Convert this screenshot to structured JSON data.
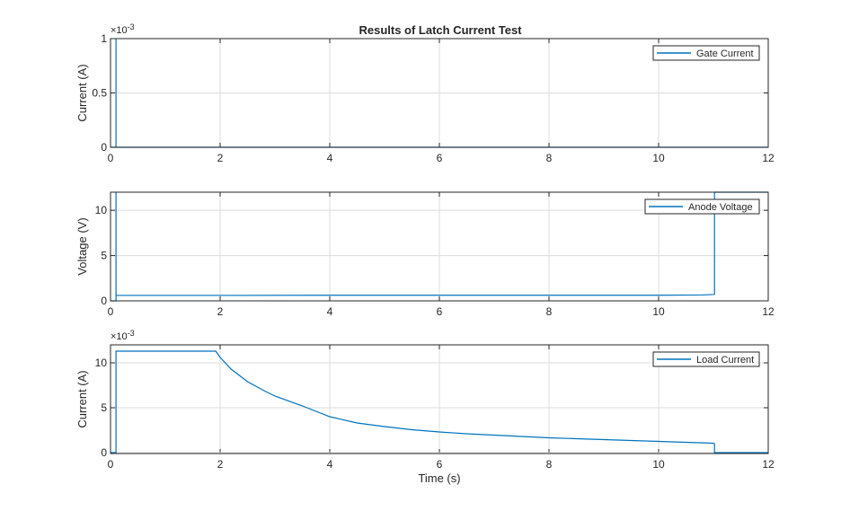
{
  "figure_title": "Results of Latch Current Test",
  "colors": {
    "line": "#0072BD",
    "grid": "#dcdcdc",
    "axis": "#262626",
    "legend_border": "#262626"
  },
  "chart_data": [
    {
      "type": "line",
      "title": "Results of Latch Current Test",
      "xlabel": "",
      "ylabel": "Current (A)",
      "exponent_label": "×10",
      "exponent_power": "-3",
      "xlim": [
        0,
        12
      ],
      "ylim": [
        0,
        1
      ],
      "xticks": [
        "0",
        "2",
        "4",
        "6",
        "8",
        "10",
        "12"
      ],
      "yticks": [
        "0",
        "0.5",
        "1"
      ],
      "grid": true,
      "legend_position": "top-right",
      "series": [
        {
          "name": "Gate Current",
          "x": [
            0,
            0.1,
            0.1,
            0.1,
            0.1,
            12
          ],
          "y": [
            0,
            0,
            1.0,
            1.0,
            0,
            0
          ]
        }
      ]
    },
    {
      "type": "line",
      "title": "",
      "xlabel": "",
      "ylabel": "Voltage (V)",
      "xlim": [
        0,
        12
      ],
      "ylim": [
        0,
        12
      ],
      "xticks": [
        "0",
        "2",
        "4",
        "6",
        "8",
        "10",
        "12"
      ],
      "yticks": [
        "0",
        "5",
        "10"
      ],
      "grid": true,
      "legend_position": "top-right",
      "series": [
        {
          "name": "Anode Voltage",
          "x": [
            0,
            0.1,
            0.1,
            0.1,
            2,
            4,
            6,
            8,
            10,
            10.8,
            11.0,
            11.02,
            11.02,
            12
          ],
          "y": [
            0,
            0,
            12,
            0.6,
            0.6,
            0.62,
            0.62,
            0.62,
            0.62,
            0.65,
            0.7,
            0.75,
            12,
            12
          ]
        }
      ]
    },
    {
      "type": "line",
      "title": "",
      "xlabel": "Time (s)",
      "ylabel": "Current (A)",
      "exponent_label": "×10",
      "exponent_power": "-3",
      "xlim": [
        0,
        12
      ],
      "ylim": [
        -0.1,
        12
      ],
      "xticks": [
        "0",
        "2",
        "4",
        "6",
        "8",
        "10",
        "12"
      ],
      "yticks": [
        "0",
        "5",
        "10"
      ],
      "grid": true,
      "legend_position": "top-right",
      "series": [
        {
          "name": "Load Current",
          "x": [
            0,
            0.1,
            0.1,
            0.1,
            1.92,
            2.0,
            2.2,
            2.5,
            2.8,
            3.0,
            3.5,
            4.0,
            4.5,
            5.0,
            5.5,
            6.0,
            6.5,
            7.0,
            7.5,
            8.0,
            8.5,
            9.0,
            9.5,
            10.0,
            10.5,
            11.0,
            11.02,
            11.02,
            12
          ],
          "y": [
            0,
            0,
            11.3,
            11.3,
            11.3,
            10.6,
            9.3,
            7.9,
            6.9,
            6.3,
            5.2,
            4.0,
            3.3,
            2.9,
            2.55,
            2.3,
            2.1,
            1.95,
            1.8,
            1.65,
            1.55,
            1.45,
            1.35,
            1.25,
            1.15,
            1.05,
            1.0,
            0,
            0
          ]
        }
      ]
    }
  ]
}
